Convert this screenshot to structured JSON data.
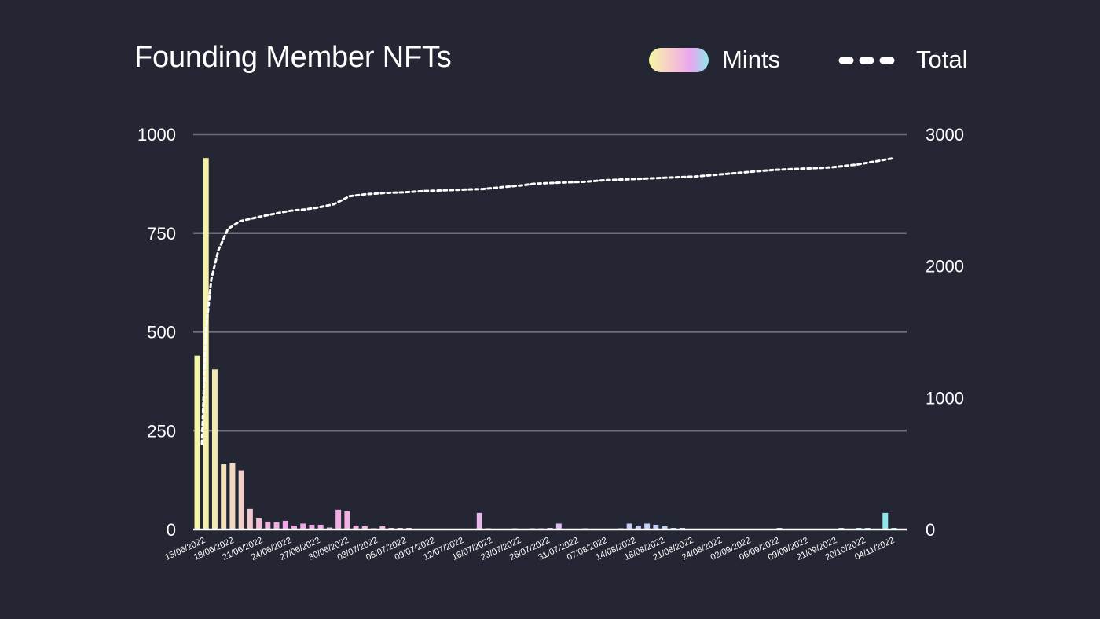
{
  "chart_data": {
    "type": "bar",
    "title": "Founding Member NFTs",
    "legend": [
      {
        "name": "Mints",
        "style": "gradient-bar"
      },
      {
        "name": "Total",
        "style": "dotted-line"
      }
    ],
    "legend_placement": "top-right",
    "y_left": {
      "ticks": [
        0,
        250,
        500,
        750,
        1000
      ],
      "ylim": [
        0,
        1000
      ]
    },
    "y_right": {
      "ticks": [
        0,
        1000,
        2000,
        3000
      ],
      "ylim": [
        0,
        3000
      ]
    },
    "grid": true,
    "x_tick_labels": [
      "15/06/2022",
      "18/06/2022",
      "21/06/2022",
      "24/06/2022",
      "27/06/2022",
      "30/06/2022",
      "03/07/2022",
      "06/07/2022",
      "09/07/2022",
      "12/07/2022",
      "16/07/2022",
      "23/07/2022",
      "26/07/2022",
      "31/07/2022",
      "07/08/2022",
      "14/08/2022",
      "18/08/2022",
      "21/08/2022",
      "24/08/2022",
      "02/09/2022",
      "06/09/2022",
      "09/09/2022",
      "21/09/2022",
      "20/10/2022",
      "04/11/2022"
    ],
    "series": [
      {
        "name": "Mints",
        "type": "bar",
        "axis": "left",
        "values": [
          440,
          940,
          405,
          165,
          167,
          150,
          52,
          28,
          20,
          18,
          22,
          10,
          15,
          12,
          12,
          5,
          50,
          46,
          10,
          8,
          3,
          8,
          4,
          4,
          4,
          2,
          2,
          2,
          2,
          2,
          2,
          2,
          42,
          3,
          2,
          2,
          3,
          2,
          3,
          3,
          4,
          15,
          2,
          2,
          3,
          2,
          2,
          2,
          3,
          15,
          10,
          15,
          12,
          8,
          4,
          4,
          2,
          2,
          2,
          2,
          2,
          2,
          2,
          2,
          2,
          2,
          4,
          2,
          2,
          2,
          2,
          2,
          2,
          4,
          2,
          4,
          4,
          2,
          42,
          4
        ]
      },
      {
        "name": "Total",
        "type": "line",
        "axis": "right",
        "values": [
          650,
          1500,
          1900,
          2120,
          2280,
          2340,
          2360,
          2380,
          2400,
          2420,
          2430,
          2445,
          2470,
          2530,
          2545,
          2555,
          2560,
          2570,
          2575,
          2580,
          2585,
          2600,
          2610,
          2625,
          2630,
          2635,
          2640,
          2650,
          2655,
          2660,
          2665,
          2670,
          2675,
          2680,
          2690,
          2700,
          2710,
          2720,
          2730,
          2735,
          2740,
          2745,
          2750,
          2760,
          2770,
          2780,
          2790,
          2800,
          2810,
          2818
        ]
      }
    ],
    "colors": {
      "background": "#242733",
      "grid": "#6b6e78",
      "gradient": [
        "#f4f7a6",
        "#f6c6cf",
        "#e8a6f0",
        "#8fe8ea"
      ],
      "total_line": "#ffffff"
    }
  }
}
